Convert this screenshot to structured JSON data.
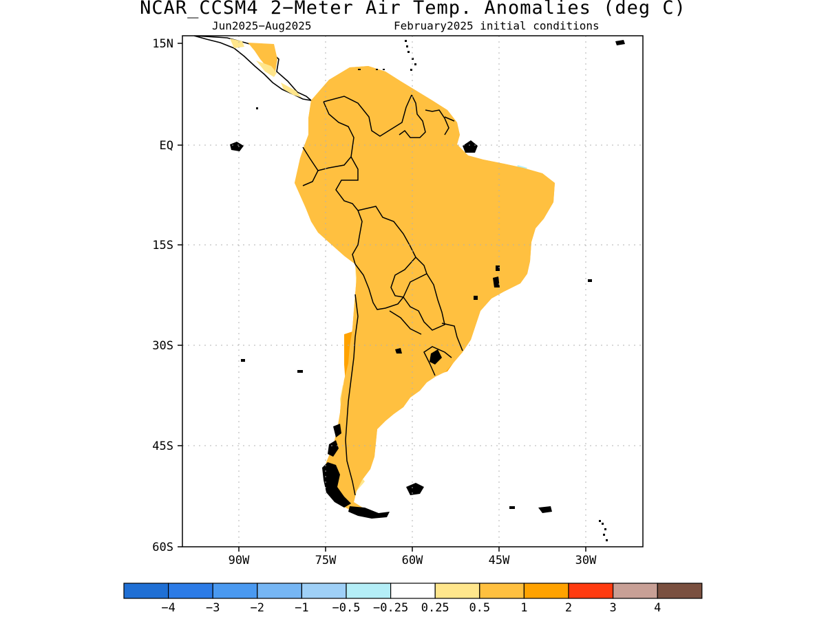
{
  "title": "NCAR_CCSM4 2−Meter Air Temp. Anomalies (deg C)",
  "subtitle_left": "Jun2025−Aug2025",
  "subtitle_right": "February2025 initial conditions",
  "map": {
    "region": "South America",
    "lat_ticks": [
      "15N",
      "EQ",
      "15S",
      "30S",
      "45S",
      "60S"
    ],
    "lon_ticks": [
      "90W",
      "75W",
      "60W",
      "45W",
      "30W"
    ],
    "grid": "dotted",
    "projection": "lat-lon"
  },
  "colorbar": {
    "labels": [
      "−4",
      "−3",
      "−2",
      "−1",
      "−0.5",
      "−0.25",
      "0.25",
      "0.5",
      "1",
      "2",
      "3",
      "4"
    ],
    "colors": [
      "#1f6fd4",
      "#2c7be6",
      "#4a99f0",
      "#76b6f4",
      "#9fd0f7",
      "#b4eef7",
      "#ffffff",
      "#ffe68c",
      "#ffc040",
      "#ffa200",
      "#ff3b10",
      "#c8a096",
      "#7a5040"
    ]
  },
  "colors": {
    "land_outline": "#000000",
    "anomaly_light": "#ffe68c",
    "anomaly_medium": "#ffc040",
    "anomaly_strong": "#ffa200",
    "anomaly_hot": "#ff3b10",
    "anomaly_cool": "#9fd0f7"
  }
}
